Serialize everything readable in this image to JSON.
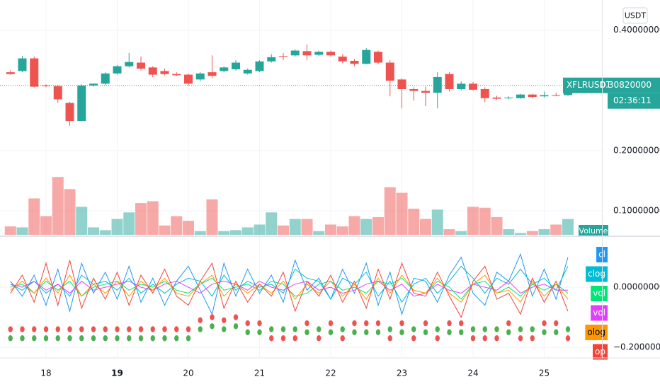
{
  "chart_data": [
    {
      "type": "candlestick",
      "symbol": "XFLRUSDT",
      "currency": "USDT",
      "countdown": "02:36:11",
      "last_price": {
        "value": 0.3082,
        "label": "0.30820000"
      },
      "up_color": "#26a69a",
      "down_color": "#ef5350",
      "bold_category_index": 9,
      "categories": [
        null,
        null,
        null,
        "18",
        null,
        null,
        null,
        null,
        null,
        "19",
        null,
        null,
        null,
        null,
        null,
        "20",
        null,
        null,
        null,
        null,
        null,
        "21",
        null,
        null,
        null,
        null,
        null,
        "22",
        null,
        null,
        null,
        null,
        null,
        "23",
        null,
        null,
        null,
        null,
        null,
        "24",
        null,
        null,
        null,
        null,
        null,
        "25",
        null,
        null
      ],
      "open": [
        0.33,
        0.332,
        0.353,
        0.308,
        0.307,
        0.279,
        0.249,
        0.308,
        0.311,
        0.328,
        0.34,
        0.346,
        0.338,
        0.332,
        0.327,
        0.326,
        0.318,
        0.33,
        0.332,
        0.335,
        0.328,
        0.332,
        0.348,
        0.357,
        0.358,
        0.365,
        0.359,
        0.364,
        0.356,
        0.349,
        0.344,
        0.364,
        0.346,
        0.318,
        0.302,
        0.299,
        0.296,
        0.327,
        0.302,
        0.311,
        0.302,
        0.288,
        0.287,
        0.287,
        0.293,
        0.29,
        0.292,
        0.292
      ],
      "high": [
        0.333,
        0.357,
        0.356,
        0.31,
        0.309,
        0.281,
        0.31,
        0.312,
        0.33,
        0.342,
        0.362,
        0.356,
        0.34,
        0.336,
        0.33,
        0.328,
        0.33,
        0.358,
        0.34,
        0.35,
        0.336,
        0.35,
        0.36,
        0.362,
        0.368,
        0.376,
        0.366,
        0.366,
        0.36,
        0.352,
        0.37,
        0.366,
        0.35,
        0.32,
        0.305,
        0.306,
        0.33,
        0.33,
        0.315,
        0.314,
        0.305,
        0.291,
        0.29,
        0.294,
        0.294,
        0.298,
        0.296,
        0.31
      ],
      "low": [
        0.326,
        0.33,
        0.305,
        0.305,
        0.279,
        0.241,
        0.249,
        0.306,
        0.309,
        0.326,
        0.338,
        0.333,
        0.322,
        0.325,
        0.324,
        0.308,
        0.315,
        0.32,
        0.33,
        0.333,
        0.326,
        0.33,
        0.346,
        0.35,
        0.356,
        0.35,
        0.357,
        0.356,
        0.345,
        0.34,
        0.343,
        0.344,
        0.29,
        0.27,
        0.283,
        0.274,
        0.27,
        0.298,
        0.3,
        0.299,
        0.28,
        0.284,
        0.285,
        0.286,
        0.287,
        0.288,
        0.29,
        0.291
      ],
      "close": [
        0.327,
        0.353,
        0.306,
        0.307,
        0.285,
        0.249,
        0.308,
        0.311,
        0.328,
        0.34,
        0.347,
        0.336,
        0.326,
        0.327,
        0.325,
        0.311,
        0.328,
        0.324,
        0.338,
        0.346,
        0.334,
        0.348,
        0.355,
        0.356,
        0.366,
        0.358,
        0.364,
        0.358,
        0.348,
        0.344,
        0.367,
        0.346,
        0.316,
        0.302,
        0.299,
        0.296,
        0.322,
        0.302,
        0.311,
        0.301,
        0.287,
        0.286,
        0.288,
        0.293,
        0.289,
        0.292,
        0.291,
        0.308
      ],
      "ylim": [
        0.06,
        0.45
      ],
      "yticks": [
        {
          "value": 0.1,
          "label": "0.10000000"
        },
        {
          "value": 0.2,
          "label": "0.20000000"
        },
        {
          "value": 0.4,
          "label": "0.40000000"
        }
      ],
      "grid": true,
      "volume": {
        "name": "Volume",
        "ylim": [
          0,
          100
        ],
        "values": [
          9,
          8,
          39,
          20,
          62,
          49,
          30,
          8,
          5,
          17,
          24,
          34,
          36,
          10,
          20,
          15,
          4,
          38,
          4,
          5,
          8,
          11,
          24,
          10,
          17,
          17,
          4,
          11,
          9,
          20,
          17,
          19,
          51,
          45,
          28,
          17,
          27,
          6,
          4,
          30,
          29,
          19,
          6,
          2,
          4,
          6,
          11,
          17
        ]
      }
    },
    {
      "type": "line",
      "ylim": [
        -0.233,
        0.165
      ],
      "yticks": [
        {
          "value": 0,
          "label": "0.00000000"
        },
        {
          "value": -0.2,
          "label": "−0.20000000"
        }
      ],
      "grid": true,
      "series": [
        {
          "name": "cl",
          "color": "#2196f3",
          "values": [
            0.02,
            -0.03,
            0.04,
            -0.06,
            0.06,
            -0.08,
            0.08,
            -0.02,
            0.05,
            -0.04,
            0.07,
            -0.05,
            0.03,
            -0.06,
            0.02,
            0.07,
            -0.01,
            -0.09,
            0.08,
            -0.03,
            0.06,
            -0.02,
            0.04,
            -0.05,
            0.09,
            -0.01,
            0.03,
            -0.04,
            0.06,
            -0.02,
            0.08,
            -0.06,
            0.05,
            -0.09,
            0.03,
            0.02,
            -0.05,
            0.04,
            0.1,
            -0.02,
            -0.06,
            0.05,
            0.02,
            0.11,
            -0.03,
            0.06,
            -0.04,
            0.1
          ]
        },
        {
          "name": "clog",
          "color": "#00bcd4",
          "values": [
            0.01,
            -0.01,
            0.02,
            -0.02,
            0.01,
            -0.03,
            0.04,
            0.01,
            0.02,
            -0.01,
            0.03,
            -0.02,
            0.01,
            -0.02,
            0.01,
            0.03,
            0.02,
            -0.03,
            0.04,
            -0.01,
            0.02,
            0,
            0.01,
            -0.02,
            0.06,
            0.03,
            0.02,
            -0.04,
            0.03,
            0.01,
            0.05,
            -0.03,
            0.02,
            -0.05,
            0.01,
            0.03,
            -0.02,
            0.02,
            0.07,
            0.03,
            -0.02,
            0.03,
            0.01,
            0.06,
            0.01,
            0.03,
            -0.01,
            0.07
          ]
        },
        {
          "name": "vol",
          "color": "#00e676",
          "values": [
            0,
            0.01,
            -0.02,
            0.02,
            -0.01,
            0.02,
            -0.03,
            0,
            0.01,
            0.02,
            -0.01,
            0.01,
            0,
            0.02,
            -0.01,
            -0.02,
            0.01,
            0.03,
            -0.01,
            0,
            0.01,
            -0.01,
            0.02,
            0.01,
            -0.03,
            -0.02,
            0.01,
            0.02,
            -0.01,
            0,
            -0.02,
            0.02,
            0.01,
            0.03,
            -0.01,
            -0.02,
            0.02,
            0,
            -0.04,
            0.01,
            0.02,
            -0.02,
            0,
            -0.03,
            0.01,
            -0.01,
            0.01,
            -0.02
          ]
        },
        {
          "name": "vol",
          "color": "#e040fb",
          "values": [
            0.01,
            0,
            0.02,
            -0.01,
            0.01,
            -0.02,
            0.02,
            -0.01,
            0,
            0.01,
            0.02,
            0,
            -0.01,
            0.01,
            0.02,
            0,
            -0.02,
            0.01,
            0.02,
            0.01,
            -0.01,
            0.02,
            0,
            -0.01,
            0.01,
            0.02,
            -0.01,
            0,
            -0.02,
            -0.01,
            0.01,
            0.02,
            -0.01,
            0.01,
            -0.03,
            -0.02,
            0.01,
            -0.01,
            -0.02,
            0.01,
            0,
            -0.01,
            0.02,
            -0.02,
            0,
            0.01,
            -0.01,
            -0.01
          ]
        },
        {
          "name": "olog",
          "color": "#ff9800",
          "values": [
            -0.01,
            0.02,
            -0.02,
            0.03,
            -0.02,
            0.04,
            -0.03,
            0.01,
            -0.02,
            0.02,
            -0.03,
            0.02,
            -0.01,
            0.03,
            -0.02,
            -0.03,
            0.01,
            0.04,
            -0.03,
            0.01,
            -0.02,
            0.01,
            -0.02,
            0.02,
            -0.04,
            0.01,
            -0.02,
            0.02,
            -0.03,
            0.01,
            -0.04,
            0.03,
            -0.02,
            0.04,
            -0.01,
            -0.02,
            0.03,
            -0.02,
            -0.05,
            0.01,
            0.04,
            -0.02,
            -0.01,
            -0.05,
            0.02,
            -0.03,
            0.01,
            -0.04
          ]
        },
        {
          "name": "op",
          "color": "#f44336",
          "values": [
            -0.02,
            0.04,
            -0.05,
            0.08,
            -0.06,
            0.09,
            -0.07,
            0.03,
            -0.04,
            0.05,
            -0.06,
            0.04,
            -0.02,
            0.06,
            -0.03,
            -0.06,
            0.02,
            0.08,
            -0.07,
            0.02,
            -0.05,
            0.01,
            -0.03,
            0.05,
            -0.08,
            0.02,
            -0.03,
            0.04,
            -0.05,
            0.02,
            -0.07,
            0.06,
            -0.04,
            0.08,
            -0.02,
            -0.03,
            0.05,
            -0.03,
            -0.1,
            0.02,
            0.07,
            -0.04,
            -0.02,
            -0.09,
            0.03,
            -0.05,
            0.02,
            -0.08
          ]
        },
        {
          "marker": "dot",
          "color": "#4caf50",
          "values": [
            -0.17,
            -0.17,
            -0.17,
            -0.17,
            -0.17,
            -0.17,
            -0.17,
            -0.17,
            -0.17,
            -0.17,
            -0.17,
            -0.17,
            -0.17,
            -0.17,
            -0.17,
            -0.17,
            -0.14,
            -0.13,
            -0.14,
            -0.13,
            -0.15,
            -0.15,
            -0.14,
            -0.14,
            -0.14,
            -0.15,
            -0.14,
            -0.15,
            -0.14,
            -0.15,
            -0.15,
            -0.15,
            -0.14,
            -0.15,
            -0.14,
            -0.15,
            -0.14,
            -0.15,
            -0.15,
            -0.14,
            -0.14,
            -0.14,
            -0.15,
            -0.14,
            -0.14,
            -0.15,
            -0.15,
            -0.14
          ]
        },
        {
          "marker": "dot",
          "color": "#ef5350",
          "values": [
            -0.14,
            -0.14,
            -0.14,
            -0.14,
            -0.14,
            -0.14,
            -0.14,
            -0.14,
            -0.14,
            -0.14,
            -0.14,
            -0.14,
            -0.14,
            -0.14,
            -0.14,
            -0.14,
            -0.11,
            -0.1,
            -0.11,
            -0.1,
            -0.12,
            -0.12,
            -0.17,
            -0.17,
            -0.17,
            -0.12,
            -0.17,
            -0.12,
            -0.17,
            -0.12,
            -0.12,
            -0.12,
            -0.17,
            -0.12,
            -0.17,
            -0.12,
            -0.17,
            -0.12,
            -0.12,
            -0.17,
            -0.17,
            -0.17,
            -0.12,
            -0.17,
            -0.17,
            -0.12,
            -0.12,
            -0.17
          ]
        }
      ]
    }
  ]
}
